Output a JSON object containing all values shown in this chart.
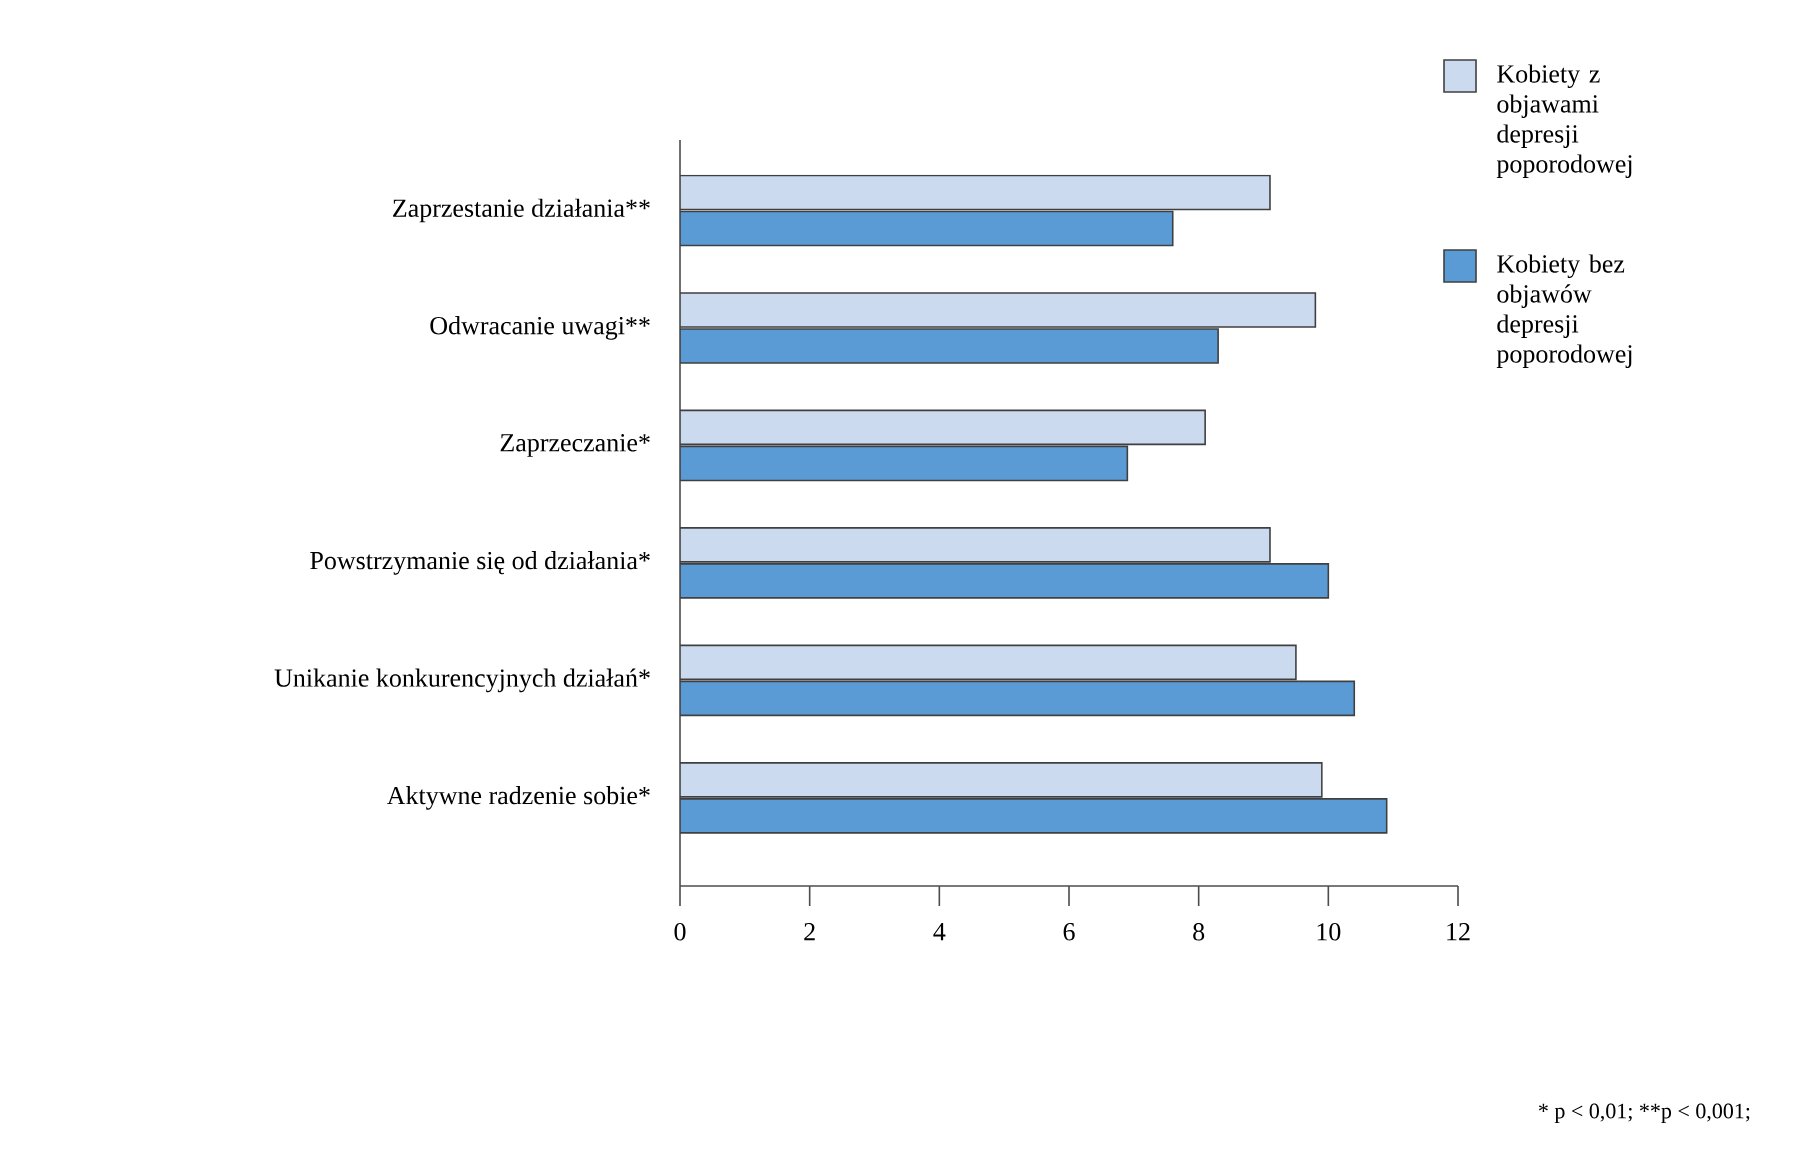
{
  "chart_data": {
    "type": "bar",
    "orientation": "horizontal",
    "categories": [
      "Zaprzestanie działania**",
      "Odwracanie uwagi**",
      "Zaprzeczanie*",
      "Powstrzymanie się od działania*",
      "Unikanie konkurencyjnych działań*",
      "Aktywne radzenie sobie*"
    ],
    "series": [
      {
        "name": "Kobiety z objawami depresji poporodowej",
        "color": "#ccdaf0",
        "values": [
          9.1,
          9.8,
          8.1,
          9.1,
          9.5,
          9.9
        ]
      },
      {
        "name": "Kobiety bez objawów depresji poporodowej",
        "color": "#5b9bd5",
        "values": [
          7.6,
          8.3,
          6.9,
          10.0,
          10.4,
          10.9
        ]
      }
    ],
    "xlim": [
      0,
      12
    ],
    "xticks": [
      0,
      2,
      4,
      6,
      8,
      10,
      12
    ],
    "legend": "top right",
    "grid": false,
    "annotations": [
      "* p < 0,01; **p < 0,001;"
    ]
  }
}
